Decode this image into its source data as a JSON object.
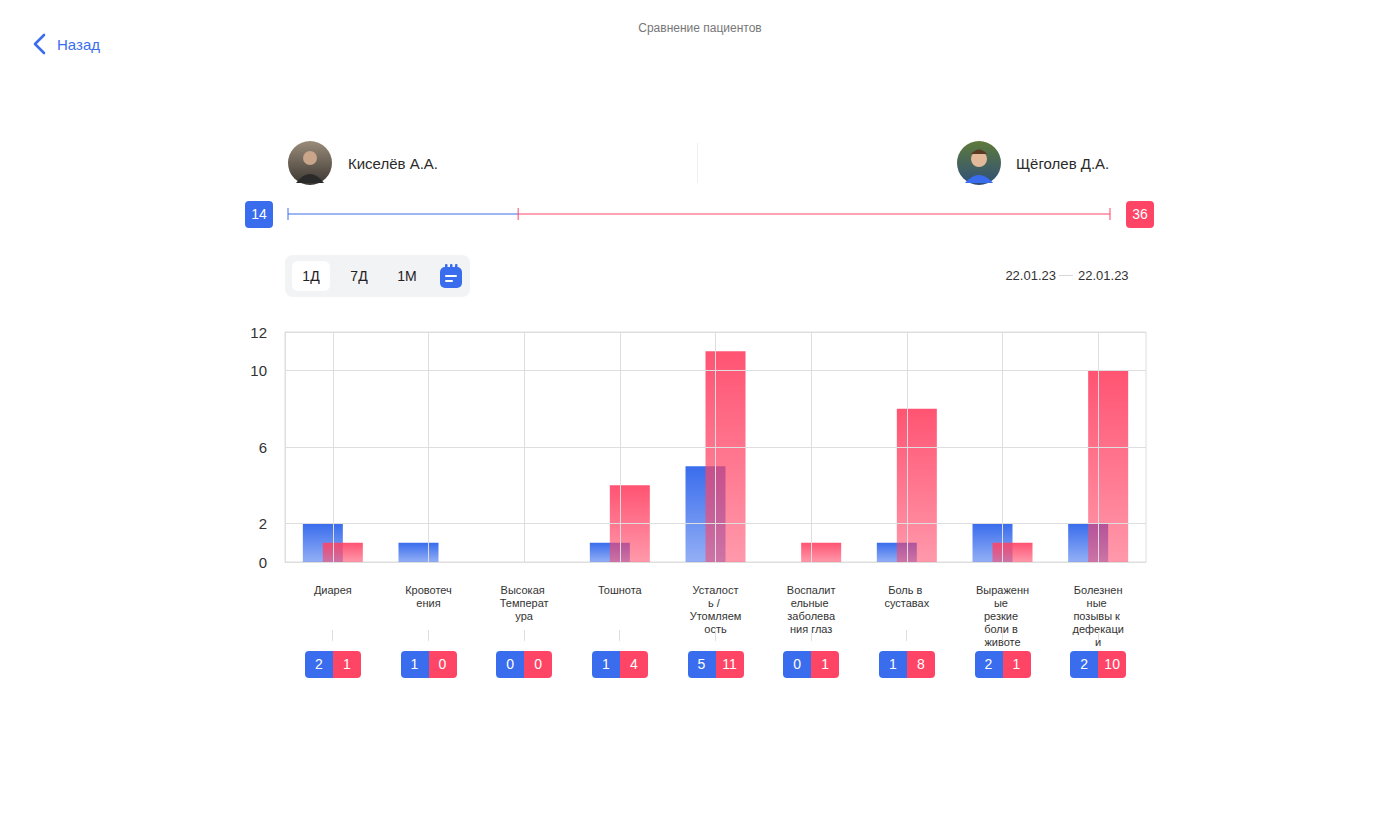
{
  "header": {
    "back": "Назад",
    "title": "Сравнение пациентов"
  },
  "patients": [
    {
      "name": "Киселёв А.А.",
      "score": 14,
      "color": "#3a6ded"
    },
    {
      "name": "Щёголев Д.А.",
      "score": 36,
      "color": "#ff4566"
    }
  ],
  "periods": {
    "options": [
      "1Д",
      "7Д",
      "1М"
    ],
    "selected": "1Д"
  },
  "date_range": {
    "from": "22.01.23",
    "to": "22.01.23"
  },
  "chart_data": {
    "type": "bar",
    "categories": [
      "Диарея",
      "Кровотечения",
      "Высокая Температура",
      "Тошнота",
      "Усталость / Утомляемость",
      "Воспалительные заболевания глаз",
      "Боль в суставах",
      "Выраженные резкие боли в животе",
      "Болезненные позывы к дефекации"
    ],
    "series": [
      {
        "name": "Киселёв А.А.",
        "color": "#3a6ded",
        "values": [
          2,
          1,
          0,
          1,
          5,
          0,
          1,
          2,
          2
        ]
      },
      {
        "name": "Щёголев Д.А.",
        "color": "#ff4566",
        "values": [
          1,
          0,
          0,
          4,
          11,
          1,
          8,
          1,
          10
        ]
      }
    ],
    "ylim": [
      0,
      12
    ],
    "yticks": [
      0,
      2,
      6,
      10,
      12
    ],
    "grid": true
  }
}
